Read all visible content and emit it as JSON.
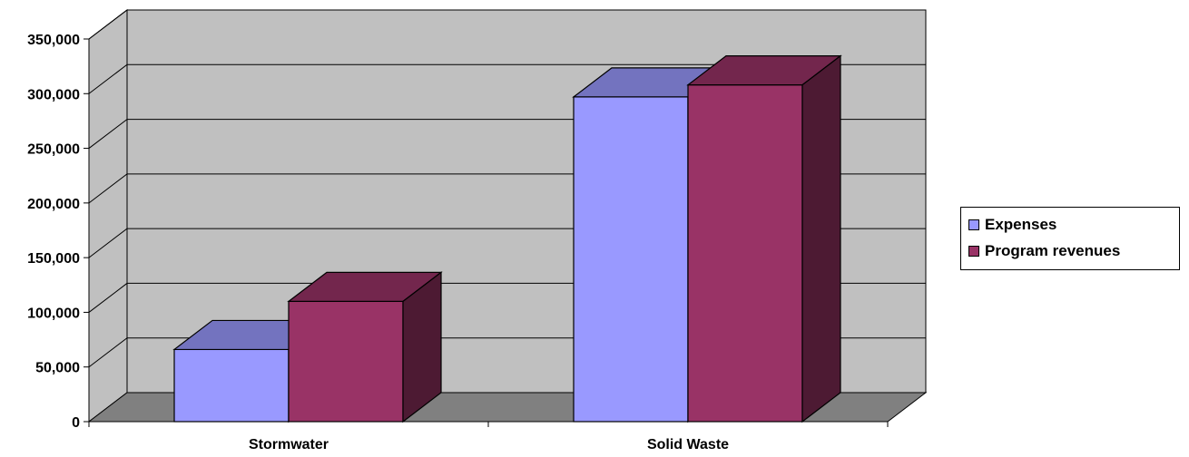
{
  "chart_data": {
    "type": "bar",
    "style": "3d-clustered-column",
    "categories": [
      "Stormwater",
      "Solid Waste"
    ],
    "series": [
      {
        "name": "Expenses",
        "values": [
          66000,
          297000
        ],
        "color": "#9999FF"
      },
      {
        "name": "Program revenues",
        "values": [
          110000,
          308000
        ],
        "color": "#993366"
      }
    ],
    "ylim": [
      0,
      350000
    ],
    "yticks": [
      0,
      50000,
      100000,
      150000,
      200000,
      250000,
      300000,
      350000
    ],
    "ytick_labels": [
      "0",
      "50,000",
      "100,000",
      "150,000",
      "200,000",
      "250,000",
      "300,000",
      "350,000"
    ],
    "title": "",
    "xlabel": "",
    "ylabel": "",
    "grid": true,
    "legend_position": "right",
    "colors": {
      "plot_wall": "#C0C0C0",
      "floor": "#808080",
      "gridline": "#000000"
    }
  }
}
